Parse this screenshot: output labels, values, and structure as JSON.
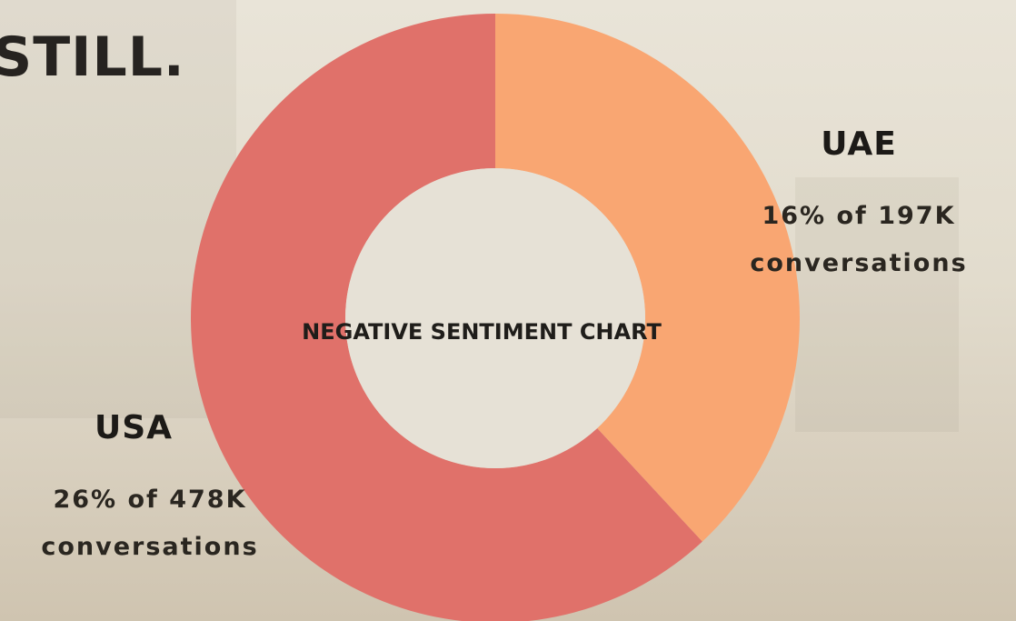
{
  "heading": "STILL.",
  "chart_data": {
    "type": "donut",
    "title": "NEGATIVE SENTIMENT CHART",
    "categories": [
      "UAE",
      "USA"
    ],
    "values": [
      16,
      26
    ],
    "value_labels": [
      "16% of 197K conversations",
      "26% of 478K conversations"
    ],
    "colors": [
      "#f9a672",
      "#e0716a"
    ]
  }
}
